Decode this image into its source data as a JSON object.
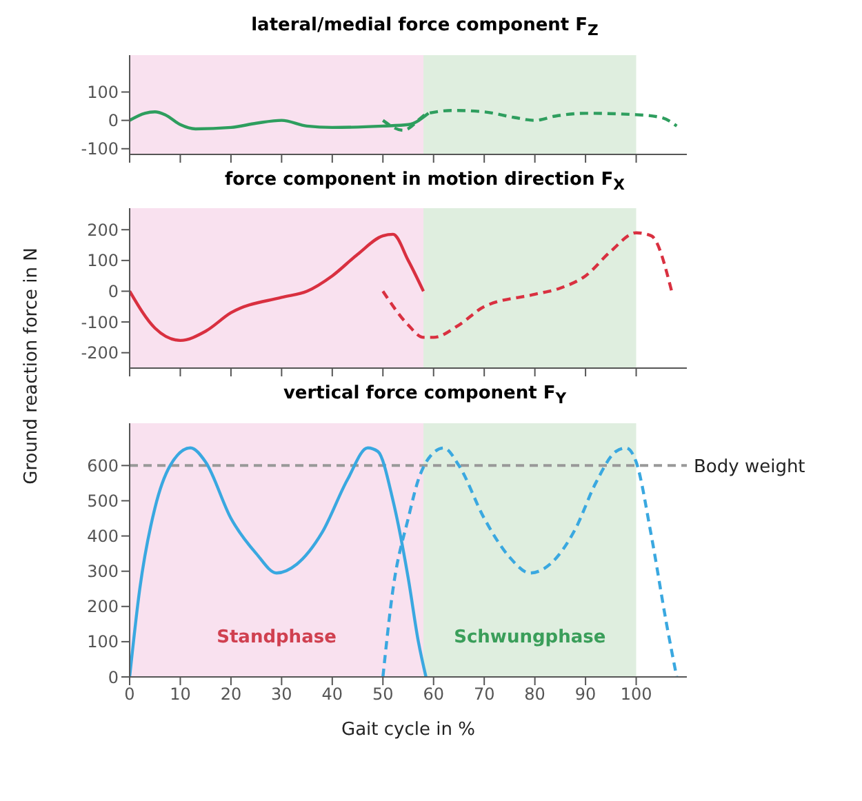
{
  "chart_data": [
    {
      "type": "line",
      "title": "lateral/medial force component F$_{Z}$",
      "xlim": [
        0,
        110
      ],
      "xticks": [
        0,
        10,
        20,
        30,
        40,
        50,
        60,
        70,
        80,
        90,
        100
      ],
      "ylim": [
        -120,
        230
      ],
      "yticks": [
        -100,
        0,
        100
      ],
      "tick_labels": "y",
      "bands": [
        {
          "axis": "x",
          "from": 0,
          "to": 58,
          "color": "#f9e1ef"
        },
        {
          "axis": "x",
          "from": 58,
          "to": 100,
          "color": "#dfeedf"
        }
      ],
      "series": [
        {
          "color": "#2e9e5e",
          "line_style": "solid",
          "x": [
            0,
            3,
            5,
            7,
            10,
            13,
            20,
            25,
            30,
            35,
            40,
            50,
            55,
            59
          ],
          "values": [
            0,
            25,
            30,
            20,
            -15,
            -30,
            -25,
            -10,
            0,
            -20,
            -25,
            -20,
            -15,
            25
          ]
        },
        {
          "color": "#2e9e5e",
          "line_style": "dashed",
          "x": [
            50,
            54,
            59,
            64,
            70,
            76,
            80,
            84,
            90,
            100,
            105,
            108
          ],
          "values": [
            0,
            -35,
            25,
            35,
            30,
            10,
            0,
            15,
            25,
            20,
            10,
            -20
          ]
        }
      ]
    },
    {
      "type": "line",
      "title": "force component in motion direction F$_{X}$",
      "ylabel": "Ground reaction force in N",
      "xlim": [
        0,
        110
      ],
      "xticks": [
        0,
        10,
        20,
        30,
        40,
        50,
        60,
        70,
        80,
        90,
        100
      ],
      "ylim": [
        -250,
        270
      ],
      "yticks": [
        -200,
        -100,
        0,
        100,
        200
      ],
      "tick_labels": "y",
      "bands": [
        {
          "axis": "x",
          "from": 0,
          "to": 58,
          "color": "#f9e1ef"
        },
        {
          "axis": "x",
          "from": 58,
          "to": 100,
          "color": "#dfeedf"
        }
      ],
      "series": [
        {
          "color": "#d93040",
          "line_style": "solid",
          "x": [
            0,
            5,
            10,
            15,
            20,
            30,
            35,
            40,
            45,
            50,
            52,
            55,
            58
          ],
          "values": [
            0,
            -120,
            -160,
            -130,
            -70,
            -20,
            0,
            50,
            120,
            180,
            185,
            100,
            0
          ]
        },
        {
          "color": "#d93040",
          "line_style": "dashed",
          "x": [
            50,
            55,
            58,
            60,
            65,
            70,
            80,
            85,
            90,
            95,
            100,
            103,
            107
          ],
          "values": [
            0,
            -110,
            -150,
            -150,
            -110,
            -50,
            -10,
            10,
            50,
            130,
            190,
            180,
            0
          ]
        }
      ]
    },
    {
      "type": "line",
      "title": "vertical force component F$_{Y}$",
      "xlabel": "Gait cycle in %",
      "xlim": [
        0,
        110
      ],
      "xticks": [
        0,
        10,
        20,
        30,
        40,
        50,
        60,
        70,
        80,
        90,
        100
      ],
      "ylim": [
        0,
        720
      ],
      "yticks": [
        0,
        100,
        200,
        300,
        400,
        500,
        600
      ],
      "bands": [
        {
          "axis": "x",
          "from": 0,
          "to": 58,
          "color": "#f9e1ef",
          "label": "Standphase"
        },
        {
          "axis": "x",
          "from": 58,
          "to": 100,
          "color": "#dfeedf",
          "label": "Schwungphase"
        }
      ],
      "ref_lines": [
        {
          "axis": "y",
          "value": 600,
          "label": "Body weight",
          "color": "#999999",
          "line_style": "dashed"
        }
      ],
      "series": [
        {
          "color": "#3aa8e0",
          "line_style": "solid",
          "x": [
            0,
            2,
            5,
            8,
            12,
            15,
            20,
            25,
            29,
            33,
            38,
            43,
            47,
            49,
            52,
            55,
            57,
            58.5
          ],
          "values": [
            0,
            250,
            480,
            600,
            650,
            610,
            450,
            350,
            295,
            320,
            410,
            560,
            650,
            640,
            500,
            280,
            100,
            0
          ]
        },
        {
          "color": "#3aa8e0",
          "line_style": "dashed",
          "x": [
            50,
            52,
            55,
            57,
            59,
            62,
            65,
            70,
            75,
            79,
            83,
            88,
            92,
            96,
            98,
            100,
            103,
            106,
            108
          ],
          "values": [
            0,
            250,
            450,
            560,
            620,
            650,
            600,
            450,
            340,
            295,
            320,
            420,
            550,
            640,
            650,
            610,
            400,
            150,
            0
          ]
        }
      ]
    }
  ]
}
